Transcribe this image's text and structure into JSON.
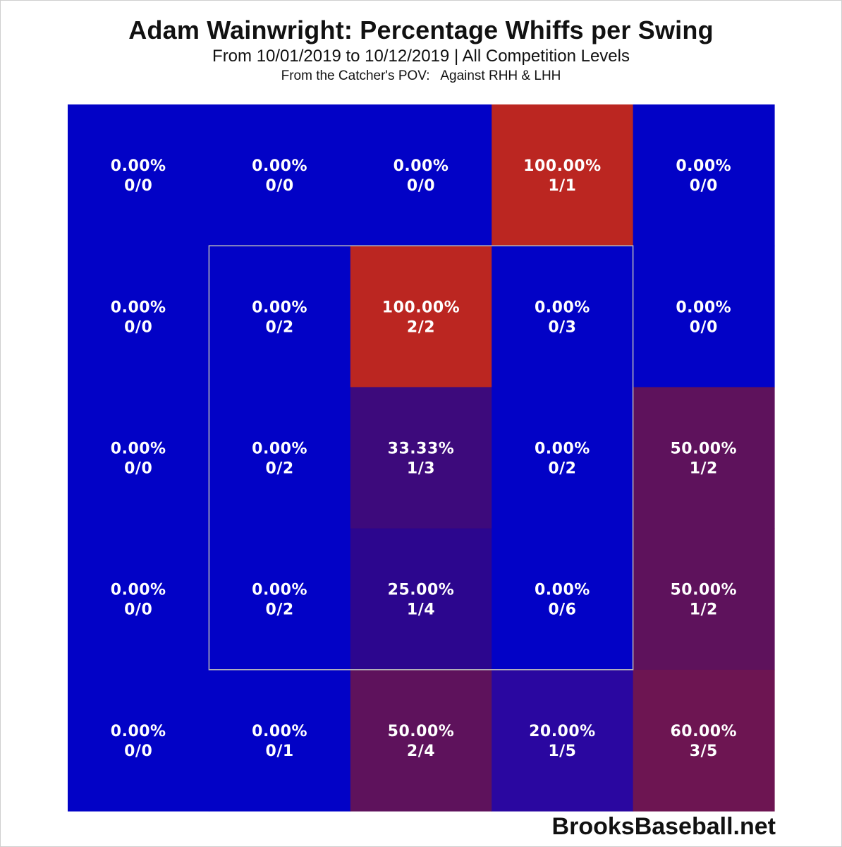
{
  "header": {
    "title": "Adam Wainwright: Percentage Whiffs per Swing",
    "subtitle": "From 10/01/2019 to 10/12/2019 | All Competition Levels",
    "subtitle2": "From the Catcher's POV:   Against RHH & LHH"
  },
  "footer": {
    "brand": "BrooksBaseball.net"
  },
  "chart_data": {
    "type": "heatmap",
    "rows": 5,
    "cols": 5,
    "strike_zone": {
      "rows": [
        1,
        3
      ],
      "cols": [
        1,
        3
      ]
    },
    "colors": {
      "zero": "#0202c6",
      "full": "#bb2621",
      "zone_border": "#bbbbbb"
    },
    "cells": [
      [
        {
          "pct": "0.00%",
          "frac": "0/0",
          "value": 0,
          "color": "#0202c6"
        },
        {
          "pct": "0.00%",
          "frac": "0/0",
          "value": 0,
          "color": "#0202c6"
        },
        {
          "pct": "0.00%",
          "frac": "0/0",
          "value": 0,
          "color": "#0202c6"
        },
        {
          "pct": "100.00%",
          "frac": "1/1",
          "value": 100,
          "color": "#bb2621"
        },
        {
          "pct": "0.00%",
          "frac": "0/0",
          "value": 0,
          "color": "#0202c6"
        }
      ],
      [
        {
          "pct": "0.00%",
          "frac": "0/0",
          "value": 0,
          "color": "#0202c6"
        },
        {
          "pct": "0.00%",
          "frac": "0/2",
          "value": 0,
          "color": "#0202c6"
        },
        {
          "pct": "100.00%",
          "frac": "2/2",
          "value": 100,
          "color": "#bb2621"
        },
        {
          "pct": "0.00%",
          "frac": "0/3",
          "value": 0,
          "color": "#0202c6"
        },
        {
          "pct": "0.00%",
          "frac": "0/0",
          "value": 0,
          "color": "#0202c6"
        }
      ],
      [
        {
          "pct": "0.00%",
          "frac": "0/0",
          "value": 0,
          "color": "#0202c6"
        },
        {
          "pct": "0.00%",
          "frac": "0/2",
          "value": 0,
          "color": "#0202c6"
        },
        {
          "pct": "33.33%",
          "frac": "1/3",
          "value": 33.33,
          "color": "#3d0a7c"
        },
        {
          "pct": "0.00%",
          "frac": "0/2",
          "value": 0,
          "color": "#0202c6"
        },
        {
          "pct": "50.00%",
          "frac": "1/2",
          "value": 50,
          "color": "#5e125c"
        }
      ],
      [
        {
          "pct": "0.00%",
          "frac": "0/0",
          "value": 0,
          "color": "#0202c6"
        },
        {
          "pct": "0.00%",
          "frac": "0/2",
          "value": 0,
          "color": "#0202c6"
        },
        {
          "pct": "25.00%",
          "frac": "1/4",
          "value": 25,
          "color": "#2c068e"
        },
        {
          "pct": "0.00%",
          "frac": "0/6",
          "value": 0,
          "color": "#0202c6"
        },
        {
          "pct": "50.00%",
          "frac": "1/2",
          "value": 50,
          "color": "#5e125c"
        }
      ],
      [
        {
          "pct": "0.00%",
          "frac": "0/0",
          "value": 0,
          "color": "#0202c6"
        },
        {
          "pct": "0.00%",
          "frac": "0/1",
          "value": 0,
          "color": "#0202c6"
        },
        {
          "pct": "50.00%",
          "frac": "2/4",
          "value": 50,
          "color": "#5e125c"
        },
        {
          "pct": "20.00%",
          "frac": "1/5",
          "value": 20,
          "color": "#2a07a0"
        },
        {
          "pct": "60.00%",
          "frac": "3/5",
          "value": 60,
          "color": "#6d1552"
        }
      ]
    ]
  }
}
